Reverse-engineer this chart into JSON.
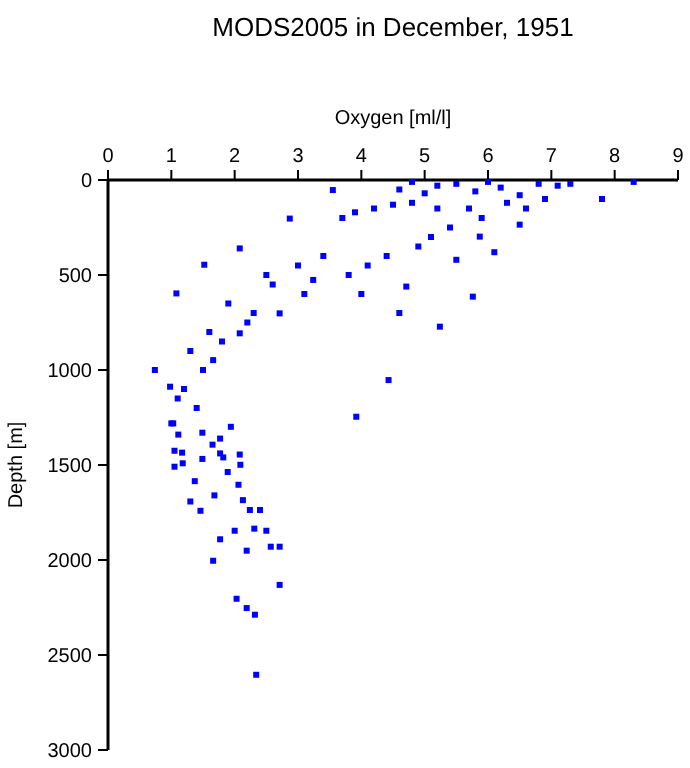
{
  "chart_data": {
    "type": "scatter",
    "title": "MODS2005 in December, 1951",
    "xlabel": "Oxygen [ml/l]",
    "ylabel": "Depth [m]",
    "xlim": [
      0,
      9
    ],
    "xticks": [
      0,
      1,
      2,
      3,
      4,
      5,
      6,
      7,
      8,
      9
    ],
    "ylim": [
      3000,
      0
    ],
    "yticks": [
      0,
      500,
      1000,
      1500,
      2000,
      2500,
      3000
    ],
    "marker": "square",
    "grid": false,
    "series": [
      {
        "color": "#0000ff",
        "x": [
          8.3,
          7.8,
          7.3,
          7.1,
          6.9,
          6.5,
          6.2,
          6.0,
          5.8,
          5.5,
          5.2,
          5.0,
          4.8,
          4.6,
          6.6,
          5.7,
          5.2,
          4.8,
          4.5,
          4.2,
          3.9,
          3.7,
          3.55,
          2.87,
          2.08,
          1.52,
          1.08,
          0.74,
          4.43,
          3.92,
          5.24,
          5.76,
          4.71,
          6.5,
          5.87,
          3.24,
          2.71,
          2.08,
          1.66,
          0.98,
          1.03,
          1.77,
          6.8,
          6.3,
          5.9,
          5.4,
          5.1,
          4.9,
          4.4,
          4.1,
          3.8,
          3.4,
          3.1,
          2.5,
          2.3,
          1.9,
          1.6,
          1.3,
          1.2,
          1.5,
          2.6,
          3.0,
          4.0,
          4.6,
          5.5,
          6.1,
          1.4,
          1.1,
          1.8,
          2.2,
          2.34,
          2.32,
          2.19,
          2.03,
          2.71,
          1.66,
          2.19,
          2.71,
          2.57,
          2.5,
          2.31,
          2.0,
          1.77,
          2.4,
          2.24,
          2.13,
          1.46,
          1.3,
          1.68,
          2.06,
          1.37,
          1.89,
          1.05,
          1.18,
          2.09,
          2.08,
          1.82,
          1.49,
          1.17,
          1.05,
          1.77,
          1.49,
          1.11,
          1.0,
          1.94,
          1.65
        ],
        "values": [
          10,
          100,
          20,
          30,
          100,
          80,
          40,
          10,
          60,
          20,
          30,
          70,
          10,
          50,
          150,
          150,
          150,
          120,
          130,
          150,
          170,
          200,
          53,
          203,
          360,
          446,
          597,
          1000,
          1053,
          1246,
          772,
          614,
          561,
          235,
          298,
          526,
          702,
          807,
          948,
          1088,
          1281,
          1439,
          20,
          120,
          200,
          250,
          300,
          350,
          400,
          450,
          500,
          400,
          600,
          500,
          700,
          650,
          800,
          900,
          1100,
          1000,
          550,
          450,
          600,
          700,
          420,
          380,
          1200,
          1150,
          850,
          750,
          2604,
          2288,
          2253,
          2204,
          2131,
          2004,
          1951,
          1930,
          1930,
          1846,
          1835,
          1846,
          1891,
          1737,
          1737,
          1685,
          1741,
          1692,
          1660,
          1604,
          1585,
          1537,
          1509,
          1491,
          1499,
          1445,
          1460,
          1468,
          1435,
          1425,
          1361,
          1330,
          1340,
          1281,
          1299,
          1393
        ]
      }
    ]
  }
}
